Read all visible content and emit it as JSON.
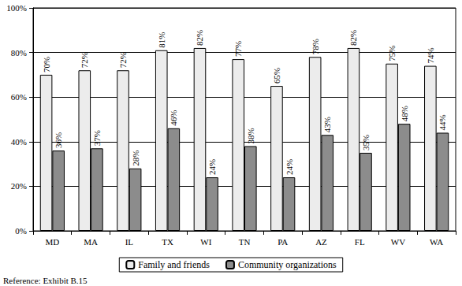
{
  "chart_data": {
    "type": "bar",
    "categories": [
      "MD",
      "MA",
      "IL",
      "TX",
      "WI",
      "TN",
      "PA",
      "AZ",
      "FL",
      "WV",
      "WA"
    ],
    "series": [
      {
        "name": "Family and friends",
        "color": "#ececec",
        "values": [
          70,
          72,
          72,
          81,
          82,
          77,
          65,
          78,
          82,
          75,
          74
        ],
        "value_labels": [
          "70%",
          "72%",
          "72%",
          "81%",
          "82%",
          "77%",
          "65%",
          "78%",
          "82%",
          "75%",
          "74%"
        ]
      },
      {
        "name": "Community organizations",
        "color": "#8c8c8c",
        "values": [
          36,
          37,
          28,
          46,
          24,
          38,
          24,
          43,
          35,
          48,
          44
        ],
        "value_labels": [
          "36%",
          "37%",
          "28%",
          "46%",
          "24%",
          "38%",
          "24%",
          "43%",
          "35%",
          "48%",
          "44%"
        ]
      }
    ],
    "ylim": [
      0,
      100
    ],
    "yticks": [
      {
        "value": 0,
        "label": "0%"
      },
      {
        "value": 20,
        "label": "20%"
      },
      {
        "value": 40,
        "label": "40%"
      },
      {
        "value": 60,
        "label": "60%"
      },
      {
        "value": 80,
        "label": "80%"
      },
      {
        "value": 100,
        "label": "100%"
      }
    ],
    "grid": true,
    "legend": "bottom",
    "data_labels": true,
    "annotations": [
      "Reference: Exhibit B.15"
    ]
  }
}
